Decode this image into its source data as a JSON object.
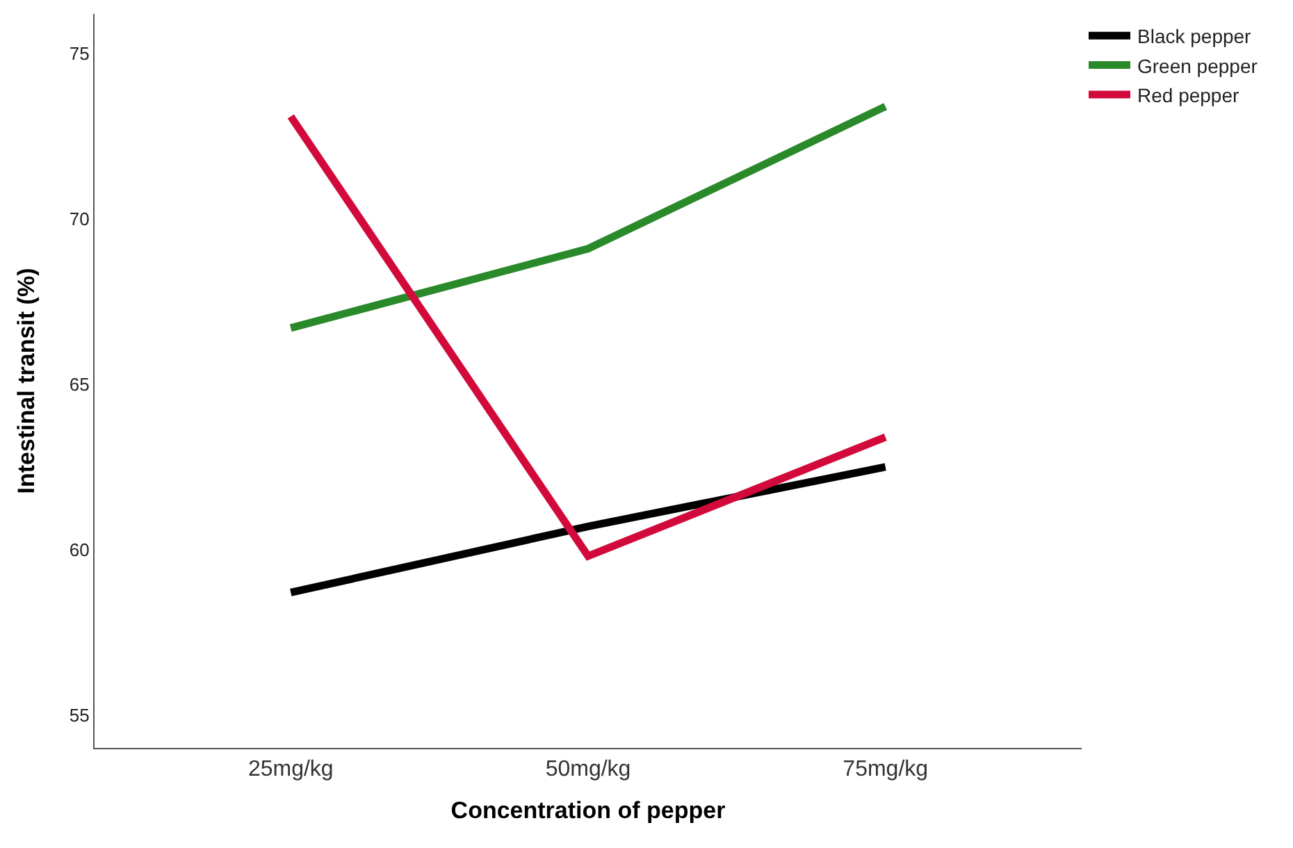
{
  "chart_data": {
    "type": "line",
    "xlabel": "Concentration of pepper",
    "ylabel": "Intestinal transit (%)",
    "categories": [
      "25mg/kg",
      "50mg/kg",
      "75mg/kg"
    ],
    "series": [
      {
        "name": "Black pepper",
        "color": "#000000",
        "values": [
          58.7,
          60.7,
          62.5
        ]
      },
      {
        "name": "Green pepper",
        "color": "#2a8a2a",
        "values": [
          66.7,
          69.1,
          73.4
        ]
      },
      {
        "name": "Red pepper",
        "color": "#d20a3c",
        "values": [
          73.1,
          59.8,
          63.4
        ]
      }
    ],
    "ylim": [
      54,
      76.2
    ],
    "yticks": [
      55,
      60,
      65,
      70,
      75
    ],
    "legend": "top right",
    "marker": "none",
    "line_style": "solid"
  }
}
